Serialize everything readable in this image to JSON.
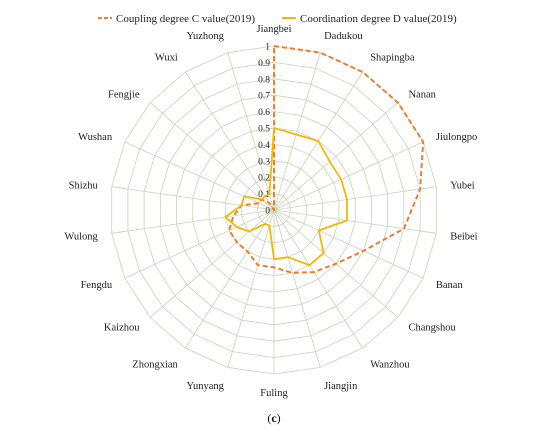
{
  "chart_data": {
    "type": "radar",
    "categories": [
      "Jiangbei",
      "Dadukou",
      "Shapingba",
      "Nanan",
      "Jiulongpo",
      "Yubei",
      "Beibei",
      "Banan",
      "Changshou",
      "Wanzhou",
      "Jiangjin",
      "Fuling",
      "Yunyang",
      "Zhongxian",
      "Kaizhou",
      "Fengdu",
      "Wulong",
      "Shizhu",
      "Wushan",
      "Fengjie",
      "Wuxi",
      "Yuzhong"
    ],
    "series": [
      {
        "name": "Coupling degree C value(2019)",
        "color": "#ED7D31",
        "style": "dashed",
        "values": [
          1.0,
          1.0,
          1.0,
          1.0,
          1.0,
          0.9,
          0.8,
          0.6,
          0.5,
          0.45,
          0.4,
          0.35,
          0.35,
          0.3,
          0.3,
          0.3,
          0.25,
          0.2,
          0.1,
          0.1,
          0.05,
          0.0
        ]
      },
      {
        "name": "Coordination degree D value(2019)",
        "color": "#F4B800",
        "style": "solid",
        "values": [
          0.5,
          0.48,
          0.5,
          0.45,
          0.45,
          0.45,
          0.45,
          0.3,
          0.4,
          0.4,
          0.3,
          0.3,
          0.1,
          0.1,
          0.2,
          0.25,
          0.3,
          0.2,
          0.2,
          0.1,
          0.1,
          0.1
        ]
      }
    ],
    "ticks": [
      0,
      0.1,
      0.2,
      0.3,
      0.4,
      0.5,
      0.6,
      0.7,
      0.8,
      0.9,
      1
    ],
    "rmax": 1,
    "legend_position": "top",
    "grid": true
  },
  "caption": {
    "open": "(",
    "letter": "c",
    "close": ")"
  }
}
